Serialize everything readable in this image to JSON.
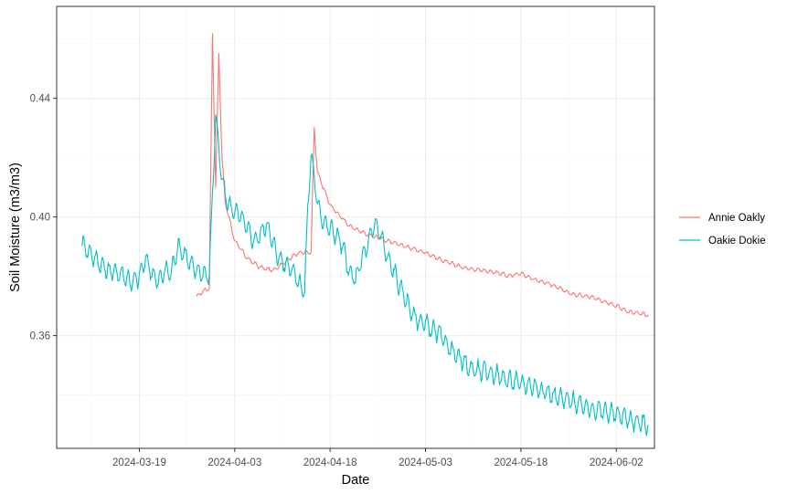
{
  "chart_data": {
    "type": "line",
    "xlabel": "Date",
    "ylabel": "Soil Moisture (m3/m3)",
    "x_range": [
      "2024-03-06",
      "2024-06-08"
    ],
    "y_range": [
      0.322,
      0.471
    ],
    "x_ticks": [
      "2024-03-19",
      "2024-04-03",
      "2024-04-18",
      "2024-05-03",
      "2024-05-18",
      "2024-06-02"
    ],
    "y_ticks": [
      0.36,
      0.4,
      0.44
    ],
    "y_tick_labels": [
      "0.36",
      "0.40",
      "0.44"
    ],
    "grid": true,
    "legend_position": "right",
    "series": [
      {
        "name": "Annie Oakly",
        "color": "#F8766D",
        "points": [
          [
            "2024-03-28",
            0.373
          ],
          [
            "2024-03-29",
            0.375
          ],
          [
            "2024-03-30",
            0.376
          ],
          [
            "2024-03-30T12:00",
            0.462
          ],
          [
            "2024-03-31",
            0.41
          ],
          [
            "2024-03-31T12:00",
            0.455
          ],
          [
            "2024-04-01",
            0.42
          ],
          [
            "2024-04-01T12:00",
            0.405
          ],
          [
            "2024-04-03",
            0.392
          ],
          [
            "2024-04-05",
            0.386
          ],
          [
            "2024-04-07",
            0.383
          ],
          [
            "2024-04-09",
            0.382
          ],
          [
            "2024-04-11",
            0.385
          ],
          [
            "2024-04-13",
            0.388
          ],
          [
            "2024-04-15",
            0.388
          ],
          [
            "2024-04-15T12:00",
            0.43
          ],
          [
            "2024-04-16",
            0.415
          ],
          [
            "2024-04-18",
            0.404
          ],
          [
            "2024-04-21",
            0.397
          ],
          [
            "2024-04-24",
            0.394
          ],
          [
            "2024-04-27",
            0.392
          ],
          [
            "2024-04-30",
            0.39
          ],
          [
            "2024-05-03",
            0.388
          ],
          [
            "2024-05-06",
            0.385
          ],
          [
            "2024-05-09",
            0.383
          ],
          [
            "2024-05-12",
            0.382
          ],
          [
            "2024-05-15",
            0.381
          ],
          [
            "2024-05-16",
            0.38
          ],
          [
            "2024-05-18",
            0.381
          ],
          [
            "2024-05-20",
            0.379
          ],
          [
            "2024-05-23",
            0.377
          ],
          [
            "2024-05-26",
            0.374
          ],
          [
            "2024-05-29",
            0.373
          ],
          [
            "2024-06-01",
            0.371
          ],
          [
            "2024-06-04",
            0.368
          ],
          [
            "2024-06-07",
            0.367
          ]
        ]
      },
      {
        "name": "Oakie Dokie",
        "color": "#00BFC4",
        "points": [
          [
            "2024-03-10",
            0.391
          ],
          [
            "2024-03-12",
            0.386
          ],
          [
            "2024-03-14",
            0.382
          ],
          [
            "2024-03-16",
            0.381
          ],
          [
            "2024-03-18",
            0.378
          ],
          [
            "2024-03-19",
            0.38
          ],
          [
            "2024-03-20",
            0.386
          ],
          [
            "2024-03-21",
            0.381
          ],
          [
            "2024-03-22",
            0.378
          ],
          [
            "2024-03-23",
            0.382
          ],
          [
            "2024-03-24",
            0.381
          ],
          [
            "2024-03-25",
            0.39
          ],
          [
            "2024-03-26",
            0.388
          ],
          [
            "2024-03-27",
            0.384
          ],
          [
            "2024-03-28",
            0.382
          ],
          [
            "2024-03-29",
            0.381
          ],
          [
            "2024-03-30",
            0.38
          ],
          [
            "2024-03-30T12:00",
            0.408
          ],
          [
            "2024-03-31",
            0.434
          ],
          [
            "2024-04-01",
            0.412
          ],
          [
            "2024-04-02",
            0.404
          ],
          [
            "2024-04-04",
            0.4
          ],
          [
            "2024-04-06",
            0.392
          ],
          [
            "2024-04-07",
            0.394
          ],
          [
            "2024-04-08",
            0.398
          ],
          [
            "2024-04-09",
            0.391
          ],
          [
            "2024-04-10",
            0.386
          ],
          [
            "2024-04-11",
            0.384
          ],
          [
            "2024-04-12",
            0.383
          ],
          [
            "2024-04-13",
            0.378
          ],
          [
            "2024-04-14",
            0.375
          ],
          [
            "2024-04-14T12:00",
            0.404
          ],
          [
            "2024-04-15",
            0.421
          ],
          [
            "2024-04-16",
            0.405
          ],
          [
            "2024-04-17",
            0.398
          ],
          [
            "2024-04-18",
            0.396
          ],
          [
            "2024-04-19",
            0.394
          ],
          [
            "2024-04-20",
            0.39
          ],
          [
            "2024-04-21",
            0.381
          ],
          [
            "2024-04-22",
            0.379
          ],
          [
            "2024-04-23",
            0.386
          ],
          [
            "2024-04-24",
            0.391
          ],
          [
            "2024-04-25",
            0.398
          ],
          [
            "2024-04-26",
            0.394
          ],
          [
            "2024-04-27",
            0.386
          ],
          [
            "2024-04-28",
            0.382
          ],
          [
            "2024-04-29",
            0.376
          ],
          [
            "2024-04-30",
            0.372
          ],
          [
            "2024-05-01",
            0.367
          ],
          [
            "2024-05-02",
            0.365
          ],
          [
            "2024-05-03",
            0.364
          ],
          [
            "2024-05-04",
            0.362
          ],
          [
            "2024-05-05",
            0.361
          ],
          [
            "2024-05-06",
            0.358
          ],
          [
            "2024-05-08",
            0.353
          ],
          [
            "2024-05-10",
            0.349
          ],
          [
            "2024-05-12",
            0.348
          ],
          [
            "2024-05-14",
            0.347
          ],
          [
            "2024-05-16",
            0.345
          ],
          [
            "2024-05-18",
            0.344
          ],
          [
            "2024-05-20",
            0.343
          ],
          [
            "2024-05-22",
            0.341
          ],
          [
            "2024-05-24",
            0.339
          ],
          [
            "2024-05-26",
            0.338
          ],
          [
            "2024-05-28",
            0.336
          ],
          [
            "2024-05-30",
            0.335
          ],
          [
            "2024-06-01",
            0.334
          ],
          [
            "2024-06-03",
            0.333
          ],
          [
            "2024-06-05",
            0.331
          ],
          [
            "2024-06-07",
            0.33
          ]
        ]
      }
    ]
  }
}
